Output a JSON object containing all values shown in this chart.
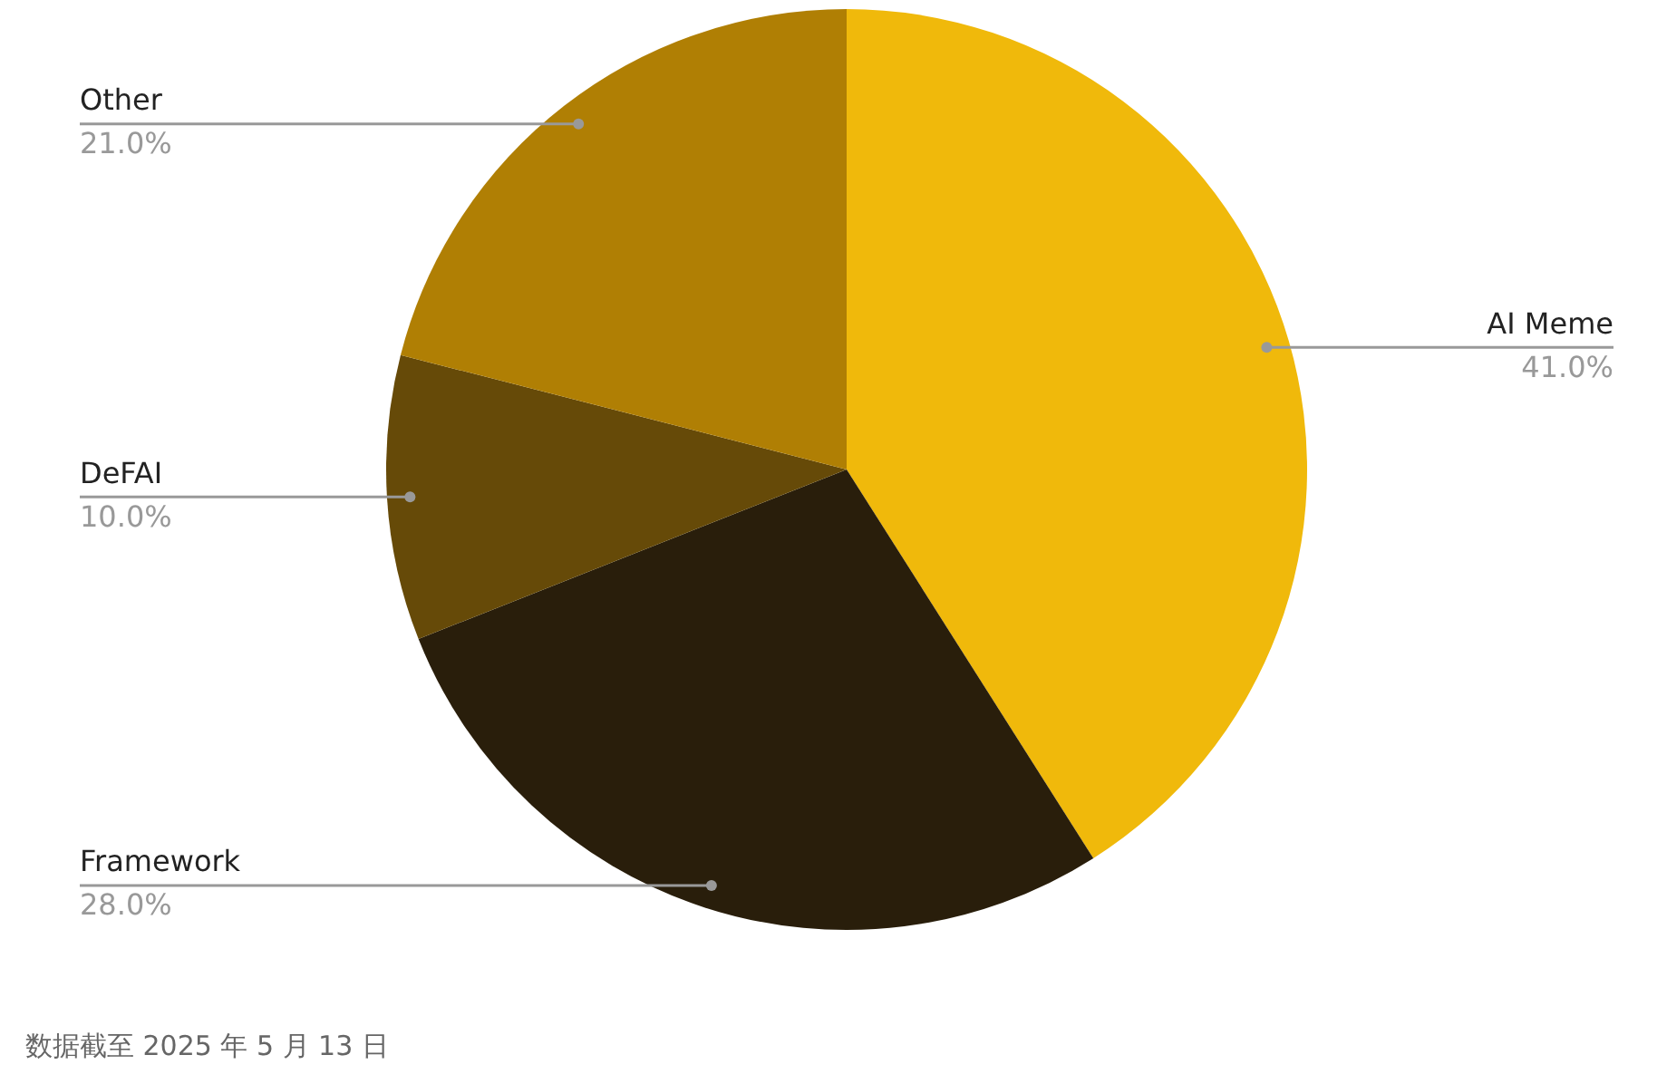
{
  "chart_data": {
    "type": "pie",
    "categories": [
      "AI Meme",
      "Framework",
      "DeFAI",
      "Other"
    ],
    "values": [
      41,
      28,
      10,
      21
    ],
    "colors": [
      "#f0b90b",
      "#291e0b",
      "#664a08",
      "#b07f04"
    ],
    "value_labels": [
      "41.0%",
      "28.0%",
      "10.0%",
      "21.0%"
    ],
    "legend": false,
    "annotations": [
      "数据截至 2025 年 5 月 13 日"
    ]
  }
}
